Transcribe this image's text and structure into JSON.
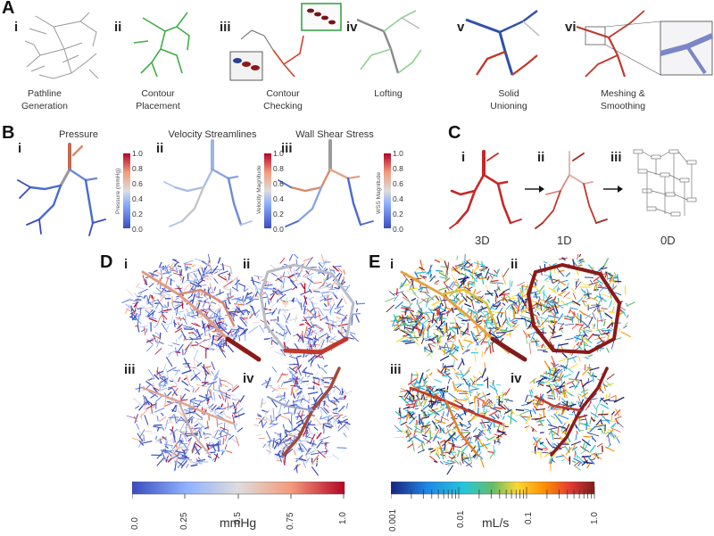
{
  "panel_a": {
    "letter": "A",
    "steps": [
      {
        "numeral": "i",
        "caption_l1": "Pathline",
        "caption_l2": "Generation"
      },
      {
        "numeral": "ii",
        "caption_l1": "Contour",
        "caption_l2": "Placement"
      },
      {
        "numeral": "iii",
        "caption_l1": "Contour",
        "caption_l2": "Checking"
      },
      {
        "numeral": "iv",
        "caption_l1": "Lofting",
        "caption_l2": ""
      },
      {
        "numeral": "v",
        "caption_l1": "Solid",
        "caption_l2": "Unioning"
      },
      {
        "numeral": "vi",
        "caption_l1": "Meshing &",
        "caption_l2": "Smoothing"
      }
    ]
  },
  "panel_b": {
    "letter": "B",
    "items": [
      {
        "numeral": "i",
        "title": "Pressure",
        "bar_label": "Pressure (mmHg)"
      },
      {
        "numeral": "ii",
        "title": "Velocity Streamlines",
        "bar_label": "Velocity Magnitude"
      },
      {
        "numeral": "iii",
        "title": "Wall Shear Stress",
        "bar_label": "WSS Magnitude"
      }
    ],
    "colorbar_ticks": [
      "1.0",
      "0.8",
      "0.6",
      "0.4",
      "0.2",
      "0.0"
    ]
  },
  "panel_c": {
    "letter": "C",
    "items": [
      {
        "numeral": "i",
        "label": "3D"
      },
      {
        "numeral": "ii",
        "label": "1D"
      },
      {
        "numeral": "iii",
        "label": "0D"
      }
    ]
  },
  "panel_d": {
    "letter": "D",
    "numerals": [
      "i",
      "ii",
      "iii",
      "iv"
    ],
    "colorbar": {
      "ticks": [
        "0.0",
        "0.25",
        "0.5",
        "0.75",
        "1.0"
      ],
      "unit": "mmHg"
    }
  },
  "panel_e": {
    "letter": "E",
    "numerals": [
      "i",
      "ii",
      "iii",
      "iv"
    ],
    "colorbar": {
      "ticks": [
        "0.001",
        "0.01",
        "0.1",
        "1.0"
      ],
      "unit": "mL/s",
      "scale": "log"
    }
  },
  "colors": {
    "cool_warm": [
      "#3a4cc0",
      "#6f92f3",
      "#aac7fd",
      "#dddddd",
      "#f6b89c",
      "#e7745b",
      "#b40426"
    ],
    "jet_like": [
      "#1a237e",
      "#1e88e5",
      "#26c6da",
      "#66bb6a",
      "#fdd835",
      "#fb8c00",
      "#e53935",
      "#7f1d1d"
    ],
    "contour_green": "#3fae49",
    "solid_blue": "#3050a8",
    "solid_red": "#c0392b"
  }
}
